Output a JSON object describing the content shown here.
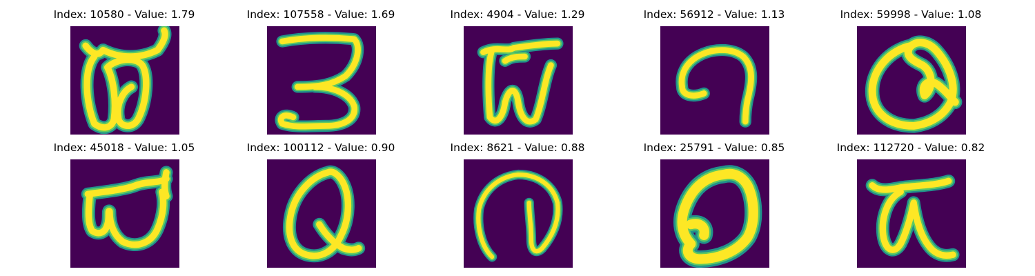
{
  "colors": {
    "background": "#440154",
    "stroke_outer": "#21918c",
    "stroke_mid": "#5ec962",
    "stroke_core": "#fde725"
  },
  "panels": [
    {
      "title": "Index: 10580 - Value: 1.79",
      "glyph": "double-loop-b"
    },
    {
      "title": "Index: 107558 - Value: 1.69",
      "glyph": "three-like"
    },
    {
      "title": "Index: 4904 - Value: 1.29",
      "glyph": "w-with-top-bar"
    },
    {
      "title": "Index: 56912 - Value: 1.13",
      "glyph": "hook-curve"
    },
    {
      "title": "Index: 59998 - Value: 1.08",
      "glyph": "loop-q"
    },
    {
      "title": "Index: 45018 - Value: 1.05",
      "glyph": "double-loop-w"
    },
    {
      "title": "Index: 100112 - Value: 0.90",
      "glyph": "q-letter"
    },
    {
      "title": "Index: 8621 - Value: 0.88",
      "glyph": "arch-curve"
    },
    {
      "title": "Index: 25791 - Value: 0.85",
      "glyph": "filled-loop"
    },
    {
      "title": "Index: 112720 - Value: 0.82",
      "glyph": "tau-like"
    }
  ]
}
